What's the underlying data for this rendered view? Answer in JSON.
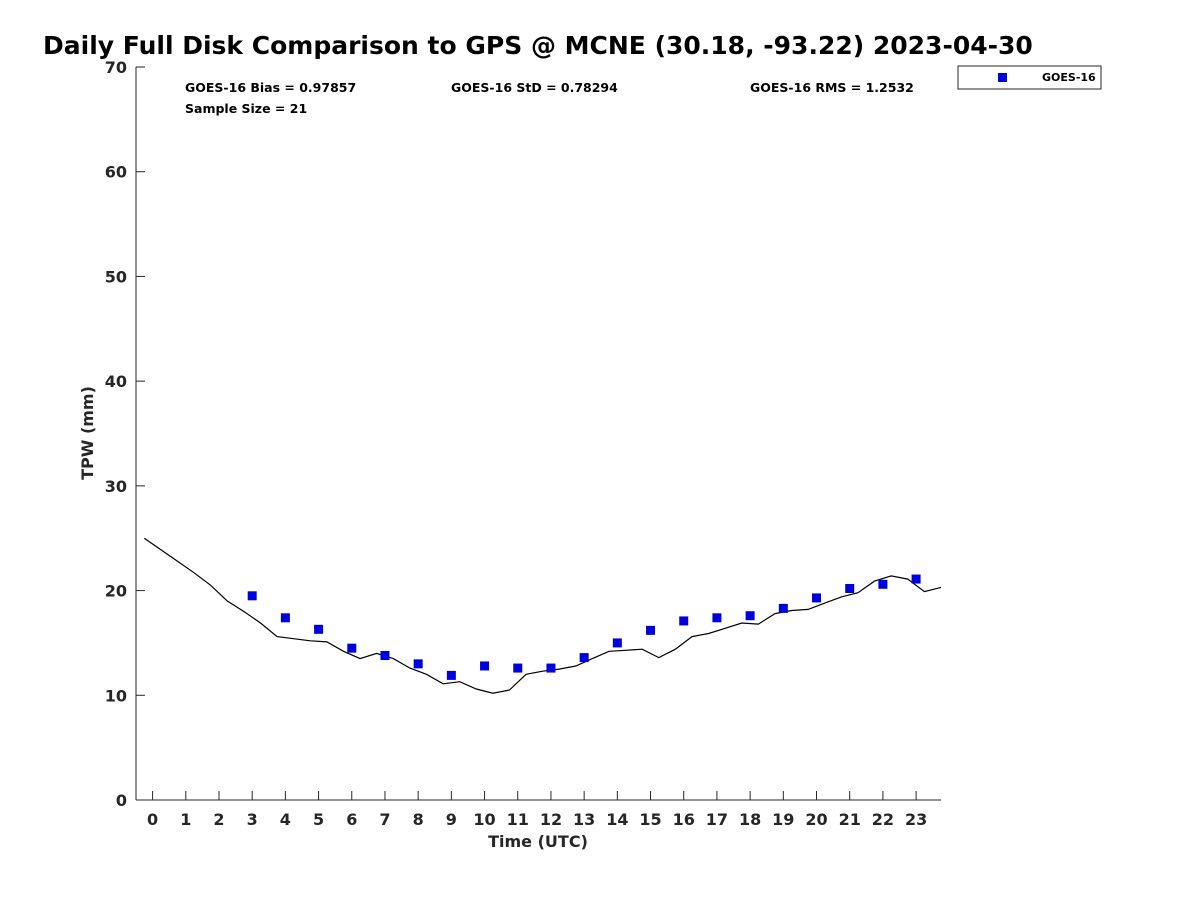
{
  "chart_data": {
    "type": "scatter",
    "title": "Daily Full Disk Comparison to GPS @ MCNE (30.18, -93.22) 2023-04-30",
    "xlabel": "Time (UTC)",
    "ylabel": "TPW (mm)",
    "xlim": [
      -0.5,
      23.75
    ],
    "ylim": [
      0,
      70
    ],
    "xticks": [
      "0",
      "1",
      "2",
      "3",
      "4",
      "5",
      "6",
      "7",
      "8",
      "9",
      "10",
      "11",
      "12",
      "13",
      "14",
      "15",
      "16",
      "17",
      "18",
      "19",
      "20",
      "21",
      "22",
      "23"
    ],
    "yticks": [
      "0",
      "10",
      "20",
      "30",
      "40",
      "50",
      "60",
      "70"
    ],
    "grid": false,
    "legend": {
      "position": "top-right-outside",
      "entries": [
        "GOES-16"
      ]
    },
    "stats": {
      "bias": "GOES-16 Bias = 0.97857",
      "std": "GOES-16 StD = 0.78294",
      "rms": "GOES-16 RMS = 1.2532",
      "sample": "Sample Size = 21"
    },
    "series": [
      {
        "name": "GOES-16",
        "kind": "scatter",
        "marker": "square",
        "color": "#0000dd",
        "x": [
          3,
          4,
          5,
          6,
          7,
          8,
          9,
          10,
          11,
          12,
          13,
          14,
          15,
          16,
          17,
          18,
          19,
          20,
          21,
          22,
          23
        ],
        "y": [
          19.5,
          17.4,
          16.3,
          14.5,
          13.8,
          13.0,
          11.9,
          12.8,
          12.6,
          12.6,
          13.6,
          15.0,
          16.2,
          17.1,
          17.4,
          17.6,
          18.3,
          19.3,
          20.2,
          20.6,
          21.1
        ]
      },
      {
        "kind": "line",
        "color": "#000000",
        "x": [
          -0.25,
          0.25,
          0.75,
          1.25,
          1.75,
          2.25,
          2.75,
          3.25,
          3.75,
          4.25,
          4.75,
          5.25,
          5.75,
          6.25,
          6.75,
          7.25,
          7.75,
          8.25,
          8.75,
          9.25,
          9.75,
          10.25,
          10.75,
          11.25,
          11.75,
          12.25,
          12.75,
          13.25,
          13.75,
          14.25,
          14.75,
          15.25,
          15.75,
          16.25,
          16.75,
          17.25,
          17.75,
          18.25,
          18.75,
          19.25,
          19.75,
          20.25,
          20.75,
          21.25,
          21.75,
          22.25,
          22.75,
          23.25,
          23.75
        ],
        "y": [
          25.0,
          23.9,
          22.8,
          21.7,
          20.5,
          19.0,
          18.0,
          16.9,
          15.6,
          15.4,
          15.2,
          15.1,
          14.2,
          13.5,
          14.0,
          13.5,
          12.6,
          12.0,
          11.1,
          11.3,
          10.6,
          10.2,
          10.5,
          12.0,
          12.3,
          12.5,
          12.8,
          13.5,
          14.2,
          14.3,
          14.4,
          13.6,
          14.4,
          15.6,
          15.9,
          16.4,
          16.9,
          16.8,
          17.8,
          18.1,
          18.2,
          18.8,
          19.4,
          19.8,
          20.9,
          21.4,
          21.1,
          19.9,
          20.3
        ]
      }
    ]
  }
}
